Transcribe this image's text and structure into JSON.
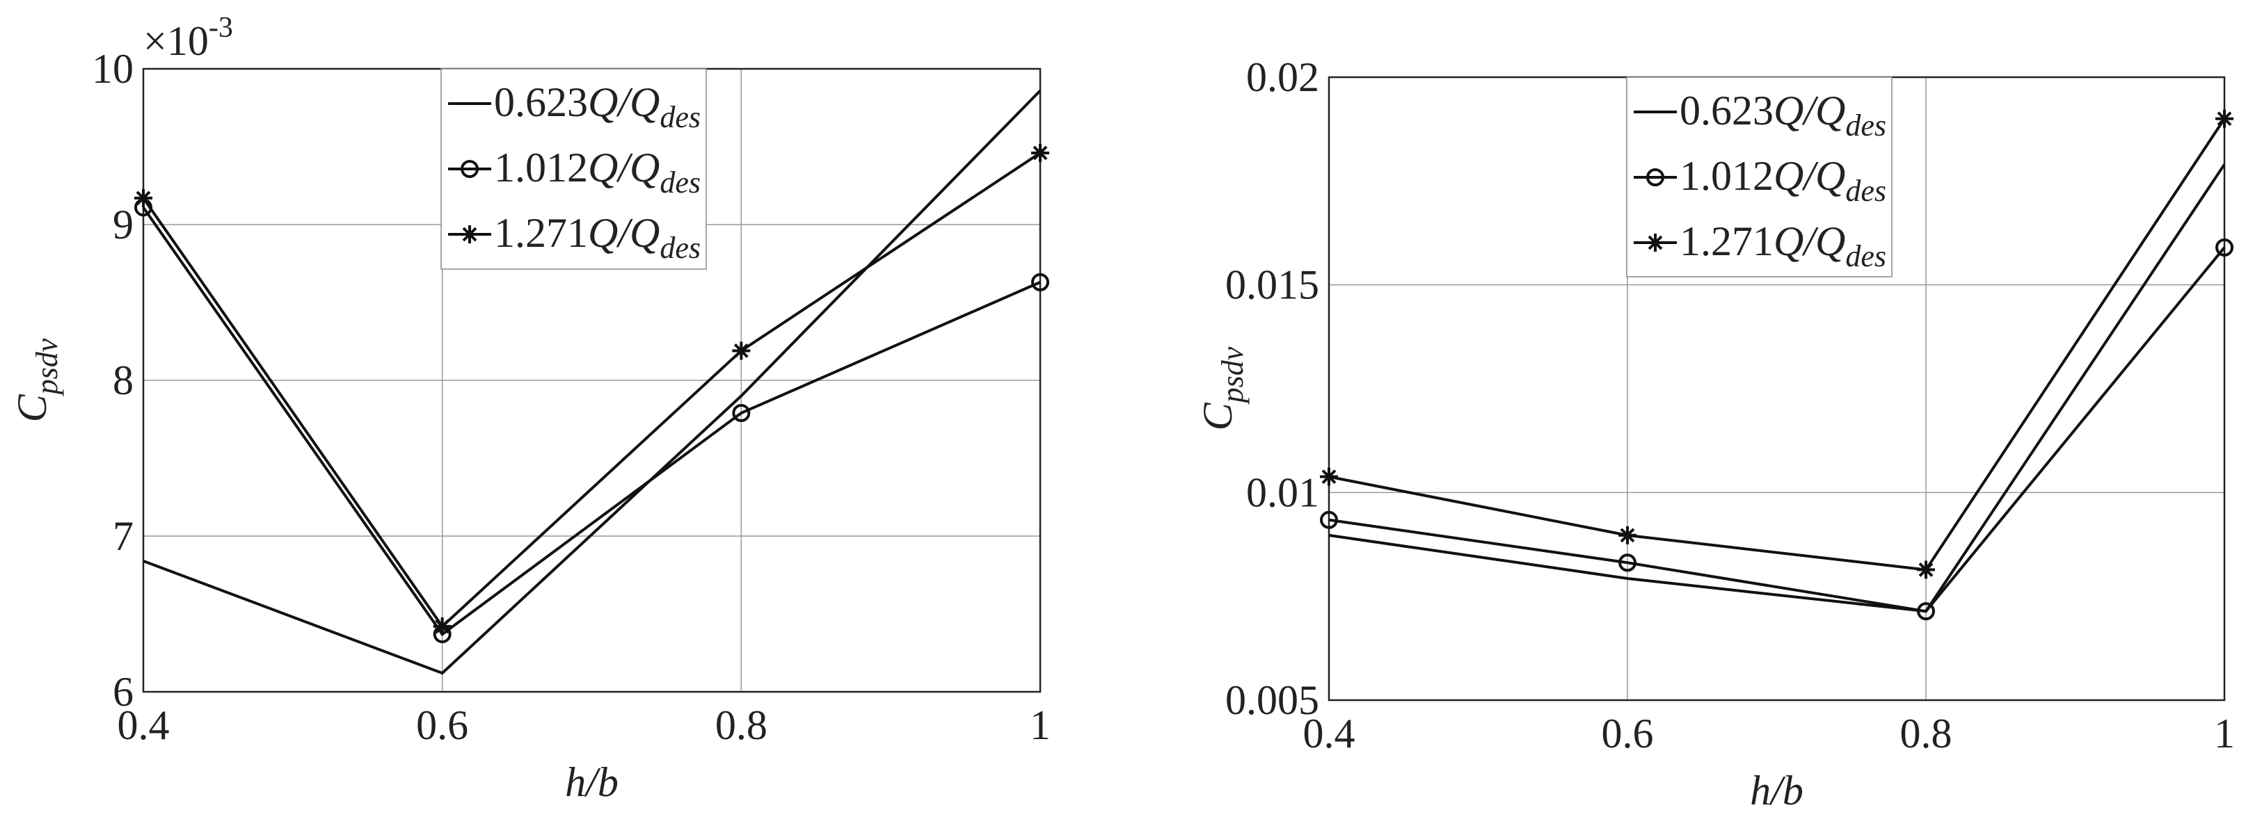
{
  "chart_data": [
    {
      "type": "line",
      "xlabel": "h/b",
      "ylabel": "C_psdv",
      "multiplier": "×10^-3",
      "x": [
        0.4,
        0.6,
        0.8,
        1
      ],
      "xlim": [
        0.4,
        1
      ],
      "xticks": [
        0.4,
        0.6,
        0.8,
        1
      ],
      "ylim": [
        6,
        10
      ],
      "yticks": [
        6,
        7,
        8,
        9,
        10
      ],
      "grid": true,
      "legend": "upper center",
      "series": [
        {
          "name": "0.623Q/Q_des",
          "color": "#111111",
          "marker": "none",
          "values": [
            6.84,
            6.12,
            7.9,
            9.86
          ]
        },
        {
          "name": "1.012Q/Q_des",
          "color": "#111111",
          "marker": "circle",
          "values": [
            9.11,
            6.37,
            7.79,
            8.63
          ]
        },
        {
          "name": "1.271Q/Q_des",
          "color": "#111111",
          "marker": "asterisk",
          "values": [
            9.17,
            6.42,
            8.19,
            9.46
          ]
        }
      ]
    },
    {
      "type": "line",
      "xlabel": "h/b",
      "ylabel": "C_psdv",
      "x": [
        0.4,
        0.6,
        0.8,
        1
      ],
      "xlim": [
        0.4,
        1
      ],
      "xticks": [
        0.4,
        0.6,
        0.8,
        1
      ],
      "ylim": [
        0.005,
        0.02
      ],
      "yticks": [
        0.005,
        0.01,
        0.015,
        0.02
      ],
      "grid": true,
      "legend": "upper center",
      "series": [
        {
          "name": "0.623Q/Q_des",
          "color": "#111111",
          "marker": "none",
          "values": [
            0.00897,
            0.00793,
            0.00714,
            0.0179
          ]
        },
        {
          "name": "1.012Q/Q_des",
          "color": "#111111",
          "marker": "circle",
          "values": [
            0.00934,
            0.00831,
            0.00714,
            0.0159
          ]
        },
        {
          "name": "1.271Q/Q_des",
          "color": "#111111",
          "marker": "asterisk",
          "values": [
            0.01038,
            0.00897,
            0.00814,
            0.019
          ]
        }
      ]
    }
  ]
}
